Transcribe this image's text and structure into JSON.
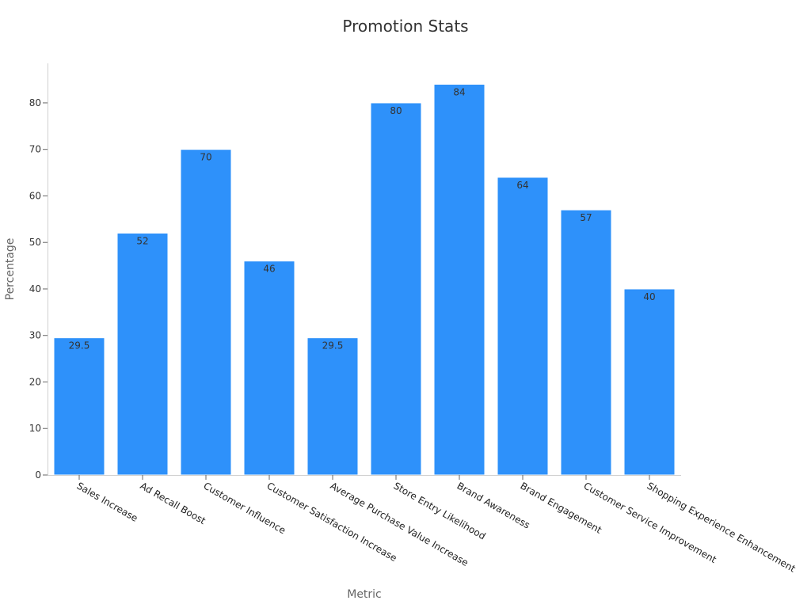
{
  "chart_data": {
    "type": "bar",
    "title": "Promotion Stats",
    "xlabel": "Metric",
    "ylabel": "Percentage",
    "categories": [
      "Sales Increase",
      "Ad Recall Boost",
      "Customer Influence",
      "Customer Satisfaction Increase",
      "Average Purchase Value Increase",
      "Store Entry Likelihood",
      "Brand Awareness",
      "Brand Engagement",
      "Customer Service Improvement",
      "Shopping Experience Enhancement"
    ],
    "values": [
      29.5,
      52,
      70,
      46,
      29.5,
      80,
      84,
      64,
      57,
      40
    ],
    "value_labels": [
      "29.5",
      "52",
      "70",
      "46",
      "29.5",
      "80",
      "84",
      "64",
      "57",
      "40"
    ],
    "yticks": [
      0,
      10,
      20,
      30,
      40,
      50,
      60,
      70,
      80
    ],
    "ylim": [
      0,
      88.5
    ],
    "grid": false,
    "legend": "none",
    "colors": {
      "bar": "#2e91fa",
      "bar_edge": "#ffffff"
    }
  }
}
